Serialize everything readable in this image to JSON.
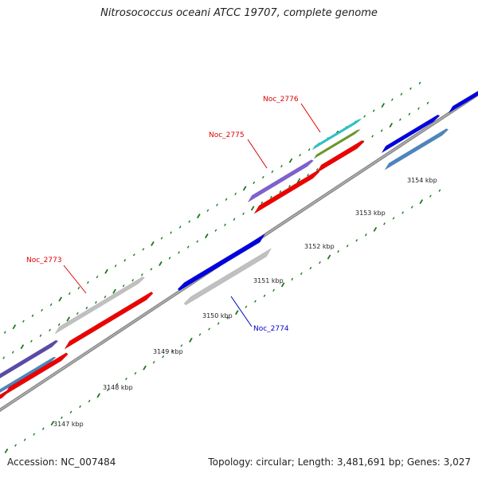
{
  "title": "Nitrosococcus oceani ATCC 19707, complete genome",
  "accession": "Accession: NC_007484",
  "stats": "Topology: circular; Length: 3,481,691 bp; Genes: 3,027",
  "colors": {
    "backbone": "#8a8a8a",
    "tick": "#1a7a1a",
    "red_label": "#dd0000",
    "blue_label": "#0000cc"
  },
  "scale": {
    "unit": "kbp",
    "labels": [
      "3147 kbp",
      "3148 kbp",
      "3149 kbp",
      "3150 kbp",
      "3151 kbp",
      "3152 kbp",
      "3153 kbp",
      "3154 kbp"
    ]
  },
  "gene_labels": [
    {
      "id": "Noc_2773",
      "color": "red"
    },
    {
      "id": "Noc_2775",
      "color": "red"
    },
    {
      "id": "Noc_2776",
      "color": "red"
    },
    {
      "id": "Noc_2774",
      "color": "blue"
    }
  ],
  "features": [
    {
      "track": "outer",
      "kind": "gene",
      "fill": "#5a4aa8",
      "strand": "+"
    },
    {
      "track": "outer",
      "kind": "gene",
      "fill": "#c0c0c0",
      "strand": "+"
    },
    {
      "track": "outer",
      "kind": "gene",
      "fill": "#8060d0",
      "strand": "+"
    },
    {
      "track": "outer",
      "kind": "gene",
      "fill": "#20c8c8",
      "strand": "+"
    },
    {
      "track": "outer",
      "kind": "gene",
      "fill": "#6a9a20",
      "strand": "+"
    },
    {
      "track": "outer",
      "kind": "gene",
      "fill": "#0000e0",
      "strand": "+"
    },
    {
      "track": "outer",
      "kind": "gene",
      "fill": "#0000e0",
      "strand": "+"
    },
    {
      "track": "outer",
      "kind": "cds",
      "fill": "#4a86c0",
      "strand": "+"
    },
    {
      "track": "outer",
      "kind": "cds",
      "fill": "#ee0000",
      "strand": "+"
    },
    {
      "track": "outer",
      "kind": "cds",
      "fill": "#ee0000",
      "strand": "+"
    },
    {
      "track": "outer",
      "kind": "cds",
      "fill": "#ee0000",
      "strand": "+"
    },
    {
      "track": "outer",
      "kind": "cds",
      "fill": "#4a86c0",
      "strand": "+"
    },
    {
      "track": "inner",
      "kind": "gene",
      "fill": "#0000e0",
      "strand": "-"
    },
    {
      "track": "inner",
      "kind": "gene",
      "fill": "#c0c0c0",
      "strand": "-"
    }
  ]
}
